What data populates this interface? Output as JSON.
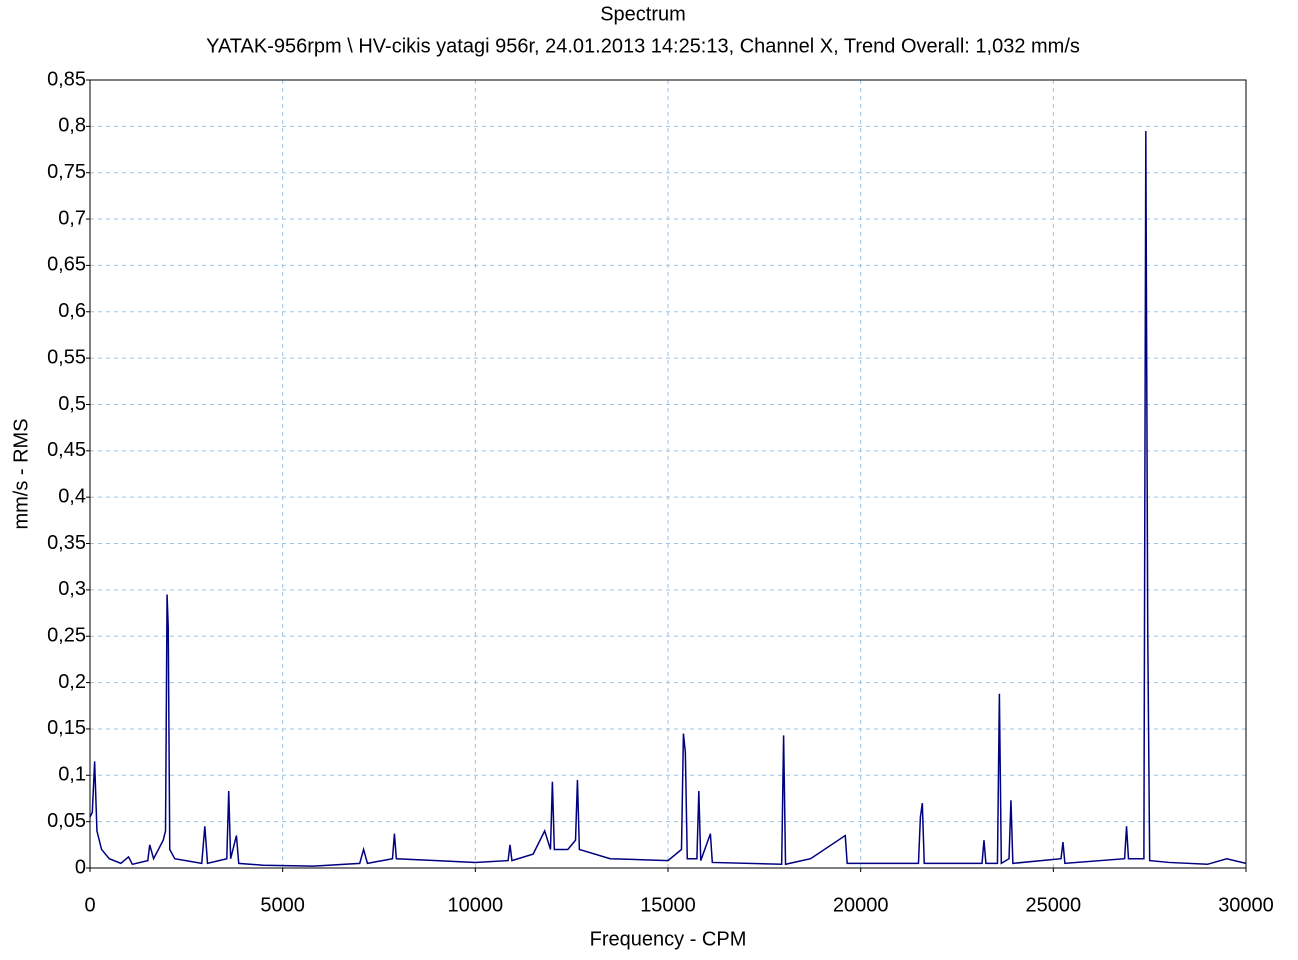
{
  "chart_data": {
    "type": "line",
    "title": "Spectrum",
    "subtitle": "YATAK-956rpm \\ HV-cikis yatagi 956r, 24.01.2013 14:25:13, Channel X, Trend Overall: 1,032 mm/s",
    "x_label": "Frequency - CPM",
    "y_label": "mm/s - RMS",
    "x": [
      0,
      60,
      120,
      180,
      300,
      500,
      800,
      1000,
      1100,
      1500,
      1550,
      1650,
      1900,
      1960,
      2000,
      2030,
      2070,
      2200,
      2900,
      2980,
      3050,
      3550,
      3600,
      3650,
      3800,
      3860,
      4500,
      5800,
      7000,
      7100,
      7200,
      7850,
      7900,
      7950,
      9000,
      10000,
      10850,
      10900,
      10950,
      11500,
      11800,
      11950,
      12000,
      12050,
      12400,
      12600,
      12650,
      12700,
      13500,
      15000,
      15350,
      15400,
      15450,
      15500,
      15750,
      15800,
      15850,
      16100,
      16150,
      17950,
      18000,
      18050,
      18700,
      19600,
      19650,
      21500,
      21550,
      21600,
      21650,
      23150,
      23200,
      23250,
      23550,
      23600,
      23650,
      23850,
      23900,
      23950,
      25200,
      25250,
      25300,
      26850,
      26900,
      26950,
      27350,
      27400,
      27450,
      27500,
      28000,
      29000,
      29500,
      30000
    ],
    "series": [
      {
        "name": "Spectrum",
        "color": "#000080",
        "values": [
          0.055,
          0.06,
          0.115,
          0.04,
          0.02,
          0.01,
          0.005,
          0.012,
          0.004,
          0.008,
          0.025,
          0.01,
          0.03,
          0.04,
          0.295,
          0.26,
          0.02,
          0.01,
          0.005,
          0.045,
          0.005,
          0.01,
          0.083,
          0.01,
          0.035,
          0.005,
          0.003,
          0.002,
          0.005,
          0.02,
          0.005,
          0.01,
          0.037,
          0.01,
          0.008,
          0.006,
          0.008,
          0.025,
          0.008,
          0.015,
          0.04,
          0.02,
          0.093,
          0.02,
          0.02,
          0.03,
          0.095,
          0.02,
          0.01,
          0.008,
          0.02,
          0.145,
          0.125,
          0.01,
          0.01,
          0.083,
          0.008,
          0.037,
          0.006,
          0.004,
          0.143,
          0.004,
          0.01,
          0.035,
          0.005,
          0.005,
          0.055,
          0.07,
          0.005,
          0.005,
          0.03,
          0.005,
          0.005,
          0.188,
          0.005,
          0.01,
          0.073,
          0.005,
          0.01,
          0.028,
          0.005,
          0.01,
          0.045,
          0.01,
          0.01,
          0.795,
          0.255,
          0.008,
          0.006,
          0.004,
          0.01,
          0.005
        ]
      }
    ],
    "xlim": [
      0,
      30000
    ],
    "xticks": [
      0,
      5000,
      10000,
      15000,
      20000,
      25000,
      30000
    ],
    "ylim": [
      0,
      0.85
    ],
    "yticks": [
      0,
      {
        "value": 0.05,
        "label": "0,05"
      },
      {
        "value": 0.1,
        "label": "0,1"
      },
      {
        "value": 0.15,
        "label": "0,15"
      },
      {
        "value": 0.2,
        "label": "0,2"
      },
      {
        "value": 0.25,
        "label": "0,25"
      },
      {
        "value": 0.3,
        "label": "0,3"
      },
      {
        "value": 0.35,
        "label": "0,35"
      },
      {
        "value": 0.4,
        "label": "0,4"
      },
      {
        "value": 0.45,
        "label": "0,45"
      },
      {
        "value": 0.5,
        "label": "0,5"
      },
      {
        "value": 0.55,
        "label": "0,55"
      },
      {
        "value": 0.6,
        "label": "0,6"
      },
      {
        "value": 0.65,
        "label": "0,65"
      },
      {
        "value": 0.7,
        "label": "0,7"
      },
      {
        "value": 0.75,
        "label": "0,75"
      },
      {
        "value": 0.8,
        "label": "0,8"
      },
      {
        "value": 0.85,
        "label": "0,85"
      }
    ],
    "grid": true
  }
}
